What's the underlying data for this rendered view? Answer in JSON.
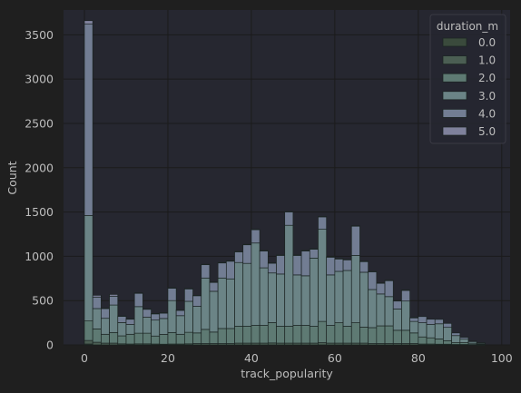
{
  "chart_data": {
    "type": "bar",
    "title": "",
    "xlabel": "track_popularity",
    "ylabel": "Count",
    "xlim": [
      -5,
      102
    ],
    "ylim": [
      0,
      3780
    ],
    "x_ticks": [
      0,
      20,
      40,
      60,
      80,
      100
    ],
    "y_ticks": [
      0,
      500,
      1000,
      1500,
      2000,
      2500,
      3000,
      3500
    ],
    "grid": true,
    "stacked": true,
    "bin_width": 2,
    "legend": {
      "title": "duration_m",
      "placement": "top-right",
      "entries": [
        "0.0",
        "1.0",
        "2.0",
        "3.0",
        "4.0",
        "5.0"
      ]
    },
    "colors": {
      "page_bg": "#1f1f1f",
      "plot_bg": "#262730",
      "grid": "#1b1b1b",
      "text": "#bdbdbd",
      "edge": "#1b2422",
      "series": [
        "#3a4a3c",
        "#4b5e53",
        "#5e7a73",
        "#6b8486",
        "#727d93",
        "#7f819c"
      ]
    },
    "bins": [
      0,
      2,
      4,
      6,
      8,
      10,
      12,
      14,
      16,
      18,
      20,
      22,
      24,
      26,
      28,
      30,
      32,
      34,
      36,
      38,
      40,
      42,
      44,
      46,
      48,
      50,
      52,
      54,
      56,
      58,
      60,
      62,
      64,
      66,
      68,
      70,
      72,
      74,
      76,
      78,
      80,
      82,
      84,
      86,
      88,
      90,
      92,
      94,
      96,
      98,
      100
    ],
    "series": [
      {
        "name": "0.0",
        "values": [
          10,
          0,
          0,
          0,
          0,
          0,
          0,
          0,
          0,
          0,
          0,
          0,
          0,
          0,
          0,
          0,
          0,
          0,
          0,
          0,
          0,
          0,
          0,
          0,
          0,
          0,
          0,
          0,
          0,
          0,
          0,
          0,
          0,
          0,
          0,
          0,
          0,
          0,
          0,
          0,
          0,
          0,
          0,
          0,
          0,
          0,
          0,
          0,
          0,
          0,
          0
        ]
      },
      {
        "name": "1.0",
        "values": [
          40,
          30,
          20,
          20,
          12,
          10,
          12,
          12,
          10,
          8,
          10,
          10,
          12,
          15,
          15,
          15,
          15,
          15,
          20,
          20,
          20,
          20,
          22,
          20,
          20,
          20,
          20,
          20,
          25,
          20,
          20,
          20,
          20,
          20,
          15,
          15,
          15,
          15,
          15,
          15,
          10,
          10,
          8,
          8,
          5,
          5,
          3,
          3,
          0,
          0,
          0
        ]
      },
      {
        "name": "2.0",
        "values": [
          220,
          150,
          100,
          120,
          90,
          110,
          120,
          120,
          90,
          110,
          130,
          110,
          130,
          120,
          160,
          130,
          170,
          170,
          190,
          190,
          200,
          200,
          230,
          190,
          190,
          200,
          200,
          190,
          240,
          200,
          230,
          190,
          230,
          180,
          180,
          200,
          200,
          150,
          150,
          120,
          80,
          70,
          60,
          40,
          20,
          20,
          10,
          5,
          0,
          0,
          0
        ]
      },
      {
        "name": "3.0",
        "values": [
          1190,
          230,
          180,
          310,
          150,
          110,
          300,
          180,
          180,
          180,
          360,
          210,
          350,
          300,
          580,
          460,
          570,
          560,
          720,
          710,
          930,
          650,
          560,
          590,
          1140,
          570,
          560,
          770,
          1040,
          570,
          580,
          630,
          760,
          620,
          430,
          360,
          330,
          240,
          330,
          130,
          160,
          150,
          170,
          150,
          80,
          40,
          20,
          10,
          0,
          0,
          0
        ]
      },
      {
        "name": "4.0",
        "values": [
          2160,
          130,
          110,
          100,
          70,
          60,
          150,
          90,
          70,
          60,
          140,
          60,
          140,
          120,
          150,
          100,
          170,
          200,
          120,
          210,
          150,
          190,
          110,
          210,
          150,
          220,
          280,
          100,
          140,
          200,
          140,
          120,
          330,
          120,
          200,
          120,
          180,
          90,
          120,
          40,
          70,
          60,
          50,
          45,
          30,
          20,
          10,
          5,
          0,
          0,
          0
        ]
      },
      {
        "name": "5.0",
        "values": [
          40,
          20,
          5,
          20,
          5,
          5,
          5,
          5,
          5,
          5,
          5,
          5,
          5,
          5,
          5,
          5,
          5,
          5,
          5,
          5,
          5,
          5,
          5,
          5,
          5,
          5,
          5,
          5,
          5,
          5,
          5,
          5,
          5,
          5,
          5,
          5,
          5,
          5,
          5,
          5,
          0,
          0,
          0,
          0,
          0,
          0,
          0,
          0,
          0,
          0,
          0
        ]
      }
    ]
  }
}
